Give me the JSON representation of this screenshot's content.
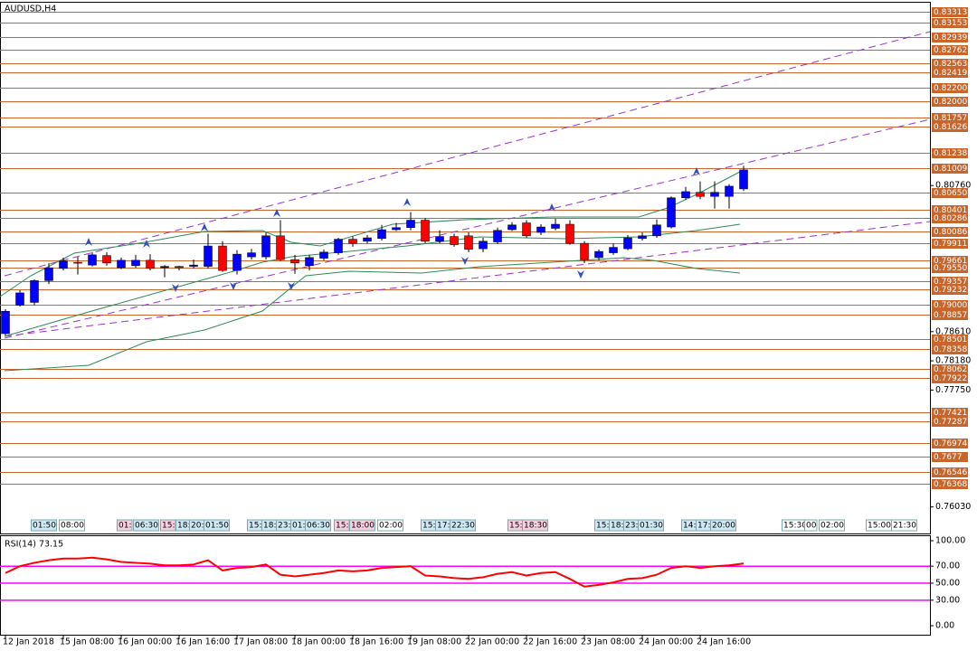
{
  "chart_data": {
    "type": "candlestick",
    "title": "AUDUSD,H4",
    "up_color": "#0000ff",
    "down_color": "#ff0000",
    "level_color": "#c8652a",
    "categories": [
      "12 Jan 2018",
      null,
      null,
      null,
      "15 Jan 08:00",
      null,
      null,
      null,
      "16 Jan 00:00",
      null,
      null,
      null,
      "16 Jan 16:00",
      null,
      null,
      null,
      "17 Jan 08:00",
      null,
      null,
      null,
      "18 Jan 00:00",
      null,
      null,
      null,
      "18 Jan 16:00",
      null,
      null,
      null,
      "19 Jan 08:00",
      null,
      null,
      null,
      "22 Jan 00:00",
      null,
      null,
      null,
      "22 Jan 16:00",
      null,
      null,
      null,
      "23 Jan 08:00",
      null,
      null,
      null,
      "24 Jan 00:00",
      null,
      null,
      null,
      "24 Jan 16:00",
      null,
      null,
      null
    ],
    "open": [
      0.7858,
      0.79,
      0.7904,
      0.7936,
      0.7954,
      0.7963,
      0.7959,
      0.7973,
      0.7955,
      0.7958,
      0.7966,
      0.7955,
      0.7957,
      0.7957,
      0.7957,
      0.7987,
      0.7951,
      0.7971,
      0.7971,
      0.8002,
      0.7967,
      0.7958,
      0.7969,
      0.7977,
      0.7997,
      0.7994,
      0.7998,
      0.8011,
      0.8014,
      0.8025,
      0.7994,
      0.8001,
      0.8002,
      0.7983,
      0.7993,
      0.8011,
      0.8021,
      0.8007,
      0.8013,
      0.8019,
      0.7991,
      0.797,
      0.7977,
      0.7983,
      0.7998,
      0.8002,
      0.8015,
      0.8058,
      0.8066,
      0.806,
      0.806,
      0.8071
    ],
    "high": [
      0.7894,
      0.7922,
      0.7938,
      0.7962,
      0.797,
      0.7971,
      0.7978,
      0.7978,
      0.797,
      0.7974,
      0.7975,
      0.7959,
      0.7958,
      0.7967,
      0.8005,
      0.7994,
      0.7981,
      0.7983,
      0.8007,
      0.8025,
      0.7974,
      0.7974,
      0.7982,
      0.7999,
      0.8001,
      0.8003,
      0.8018,
      0.8021,
      0.8037,
      0.8028,
      0.801,
      0.8005,
      0.8007,
      0.7999,
      0.8014,
      0.8022,
      0.8025,
      0.8019,
      0.8027,
      0.8025,
      0.7994,
      0.7982,
      0.7991,
      0.8003,
      0.8007,
      0.8026,
      0.806,
      0.8074,
      0.8082,
      0.8082,
      0.8078,
      0.8105
    ],
    "low": [
      0.7855,
      0.7898,
      0.79,
      0.7931,
      0.7951,
      0.7945,
      0.7957,
      0.7958,
      0.7953,
      0.7955,
      0.7951,
      0.7941,
      0.7951,
      0.7954,
      0.7954,
      0.7949,
      0.7945,
      0.7967,
      0.7967,
      0.7965,
      0.7946,
      0.7951,
      0.7966,
      0.7974,
      0.7986,
      0.7991,
      0.7995,
      0.8009,
      0.801,
      0.7991,
      0.7991,
      0.7986,
      0.7978,
      0.7978,
      0.799,
      0.8009,
      0.7999,
      0.8003,
      0.801,
      0.7989,
      0.7962,
      0.7966,
      0.7974,
      0.7981,
      0.7995,
      0.7999,
      0.8013,
      0.8055,
      0.8056,
      0.8042,
      0.8042,
      0.8068
    ],
    "close": [
      0.7891,
      0.7918,
      0.7936,
      0.7955,
      0.7965,
      0.7962,
      0.7974,
      0.7962,
      0.7966,
      0.7966,
      0.7954,
      0.7957,
      0.7955,
      0.7959,
      0.7987,
      0.7951,
      0.7975,
      0.7977,
      0.8002,
      0.7967,
      0.7962,
      0.797,
      0.7978,
      0.7997,
      0.7991,
      0.7999,
      0.8011,
      0.8014,
      0.8025,
      0.7994,
      0.8001,
      0.7989,
      0.7982,
      0.7994,
      0.801,
      0.8018,
      0.8002,
      0.8015,
      0.8019,
      0.7991,
      0.7967,
      0.7979,
      0.7985,
      0.7999,
      0.8002,
      0.8018,
      0.8058,
      0.8067,
      0.806,
      0.8066,
      0.8075,
      0.8099
    ],
    "ylim": [
      0.7564,
      0.8345
    ],
    "yticks": [
      {
        "value": 0.8076,
        "label": "0.80760"
      },
      {
        "value": 0.7861,
        "label": "0.78610"
      },
      {
        "value": 0.7818,
        "label": "0.78180"
      },
      {
        "value": 0.7775,
        "label": "0.77750"
      },
      {
        "value": 0.7603,
        "label": "0.76030"
      }
    ],
    "levels": [
      0.83313,
      0.83153,
      0.82939,
      0.82762,
      0.82563,
      0.82419,
      {
        "value": 0.822,
        "label": "0.82200"
      },
      {
        "value": 0.82,
        "label": "0.82000"
      },
      0.81757,
      0.81626,
      0.81238,
      0.81009,
      {
        "value": 0.8065,
        "label": "0.80650"
      },
      0.80401,
      0.80286,
      0.80086,
      0.79911,
      0.79661,
      {
        "value": 0.7955,
        "label": "0.79550"
      },
      0.79357,
      0.79232,
      {
        "value": 0.79,
        "label": "0.79000"
      },
      0.78857,
      0.78501,
      0.78358,
      0.78062,
      0.77922,
      0.77421,
      0.77287,
      0.76974,
      0.7677,
      0.76546,
      0.76368
    ],
    "time_markers": [
      {
        "text": "01:50",
        "color": "#cfe8f5"
      },
      {
        "text": "08:00",
        "color": "#ffffff"
      },
      {
        "text": "01:",
        "color": "#f7cfe0"
      },
      {
        "text": "06:30",
        "color": "#cfe8f5"
      },
      {
        "text": "15:",
        "color": "#f7cfe0"
      },
      {
        "text": "18:",
        "color": "#cfe8f5"
      },
      {
        "text": "20:",
        "color": "#cfe8f5"
      },
      {
        "text": "01:50",
        "color": "#cfe8f5"
      },
      {
        "text": "15:",
        "color": "#cfe8f5"
      },
      {
        "text": "18:",
        "color": "#cfe8f5"
      },
      {
        "text": "23:",
        "color": "#cfe8f5"
      },
      {
        "text": "01:",
        "color": "#cfe8f5"
      },
      {
        "text": "06:30",
        "color": "#cfe8f5"
      },
      {
        "text": "15:",
        "color": "#f7cfe0"
      },
      {
        "text": "18:00",
        "color": "#f7cfe0"
      },
      {
        "text": "02:00",
        "color": "#ffffff"
      },
      {
        "text": "15:",
        "color": "#cfe8f5"
      },
      {
        "text": "17:",
        "color": "#cfe8f5"
      },
      {
        "text": "22:30",
        "color": "#cfe8f5"
      },
      {
        "text": "15:",
        "color": "#f7cfe0"
      },
      {
        "text": "18:30",
        "color": "#f7cfe0"
      },
      {
        "text": "15:",
        "color": "#cfe8f5"
      },
      {
        "text": "18:",
        "color": "#cfe8f5"
      },
      {
        "text": "23:",
        "color": "#cfe8f5"
      },
      {
        "text": "01:30",
        "color": "#cfe8f5"
      },
      {
        "text": "14:",
        "color": "#cfe8f5"
      },
      {
        "text": "17:",
        "color": "#cfe8f5"
      },
      {
        "text": "20:00",
        "color": "#cfe8f5"
      },
      {
        "text": "15:30",
        "color": "#ffffff"
      },
      {
        "text": "00",
        "color": "#ffffff"
      },
      {
        "text": "02:00",
        "color": "#ffffff"
      },
      {
        "text": "15:00",
        "color": "#ffffff"
      },
      {
        "text": "21:30",
        "color": "#ffffff"
      }
    ],
    "rsi": {
      "title": "RSI(14) 73.15",
      "color": "#ff0000",
      "level_color": "#ff00ff",
      "levels": [
        30,
        50,
        70
      ],
      "ylim": [
        -10.6,
        105.3
      ],
      "yticks": [
        {
          "value": 100,
          "label": "100.00"
        },
        {
          "value": 70,
          "label": "70.00"
        },
        {
          "value": 50,
          "label": "50.00"
        },
        {
          "value": 30,
          "label": "30.00"
        },
        {
          "value": 0,
          "label": "0.00"
        }
      ],
      "values": [
        62,
        70,
        74,
        77,
        79,
        79,
        80,
        78,
        75,
        74,
        73,
        71,
        71,
        72,
        77,
        65,
        68,
        69,
        72,
        60,
        58,
        60,
        62,
        65,
        64,
        65,
        68,
        69,
        70,
        59,
        58,
        56,
        55,
        57,
        61,
        63,
        59,
        62,
        63,
        55,
        46,
        48,
        51,
        55,
        56,
        60,
        68,
        70,
        68,
        70,
        71,
        73.15
      ]
    }
  }
}
